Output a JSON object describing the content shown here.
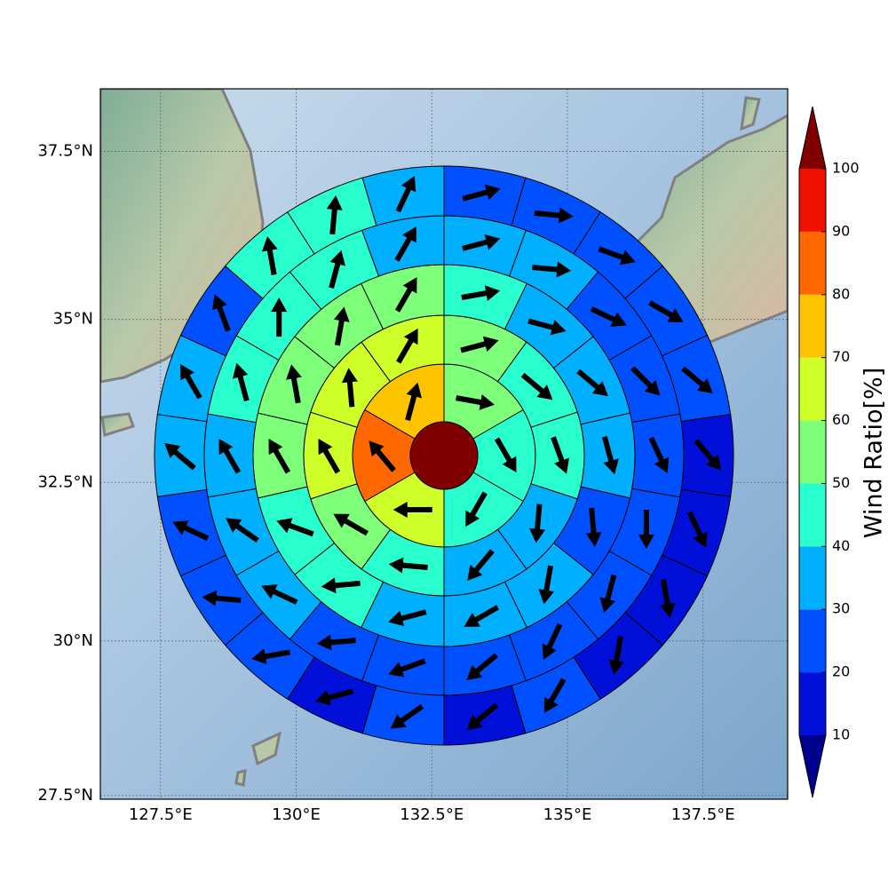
{
  "chart_data": {
    "type": "polar_sectors_map",
    "projection": "mercator",
    "grid": true,
    "xlim": [
      126.39,
      139.06
    ],
    "ylim": [
      27.44,
      38.41
    ],
    "xticks": [
      {
        "value": 127.5,
        "label": "127.5°E"
      },
      {
        "value": 130,
        "label": "130°E"
      },
      {
        "value": 132.5,
        "label": "132.5°E"
      },
      {
        "value": 135,
        "label": "135°E"
      },
      {
        "value": 137.5,
        "label": "137.5°E"
      }
    ],
    "yticks": [
      {
        "value": 27.5,
        "label": "27.5°N"
      },
      {
        "value": 30,
        "label": "30°N"
      },
      {
        "value": 32.5,
        "label": "32.5°N"
      },
      {
        "value": 35,
        "label": "35°N"
      },
      {
        "value": 37.5,
        "label": "37.5°N"
      }
    ],
    "center_value": 105,
    "rings": [
      {
        "values": [
          55,
          45,
          45,
          65,
          85,
          75
        ],
        "directions": [
          100,
          150,
          210,
          270,
          320,
          15
        ]
      },
      {
        "values": [
          55,
          45,
          45,
          35,
          35,
          45,
          55,
          65,
          65,
          65
        ],
        "directions": [
          75,
          130,
          160,
          185,
          220,
          275,
          300,
          330,
          355,
          30
        ]
      },
      {
        "values": [
          45,
          35,
          35,
          35,
          25,
          35,
          35,
          35,
          45,
          45,
          55,
          55,
          55,
          55
        ],
        "directions": [
          80,
          105,
          130,
          165,
          175,
          190,
          240,
          255,
          265,
          290,
          330,
          350,
          10,
          30
        ]
      },
      {
        "values": [
          35,
          35,
          25,
          25,
          25,
          25,
          25,
          25,
          25,
          25,
          25,
          35,
          35,
          35,
          45,
          45,
          45,
          35
        ],
        "directions": [
          75,
          95,
          115,
          135,
          155,
          180,
          195,
          205,
          230,
          250,
          265,
          295,
          305,
          330,
          345,
          0,
          15,
          30
        ]
      },
      {
        "values": [
          25,
          25,
          25,
          25,
          25,
          15,
          15,
          15,
          15,
          25,
          15,
          25,
          15,
          25,
          25,
          25,
          35,
          35,
          25,
          45,
          45,
          35
        ],
        "directions": [
          75,
          95,
          110,
          120,
          130,
          140,
          155,
          170,
          190,
          210,
          230,
          235,
          255,
          260,
          275,
          295,
          310,
          330,
          340,
          350,
          5,
          25
        ]
      }
    ],
    "colorbar": {
      "label": "Wind Ratio[%]",
      "ticks": [
        10,
        20,
        30,
        40,
        50,
        60,
        70,
        80,
        90,
        100
      ],
      "colors": [
        "#0010d8",
        "#0050ff",
        "#00b0ff",
        "#29ffce",
        "#7dff7a",
        "#ceff29",
        "#ffc400",
        "#ff6800",
        "#f01000"
      ],
      "under_color": "#00008f",
      "over_color": "#800000"
    }
  }
}
